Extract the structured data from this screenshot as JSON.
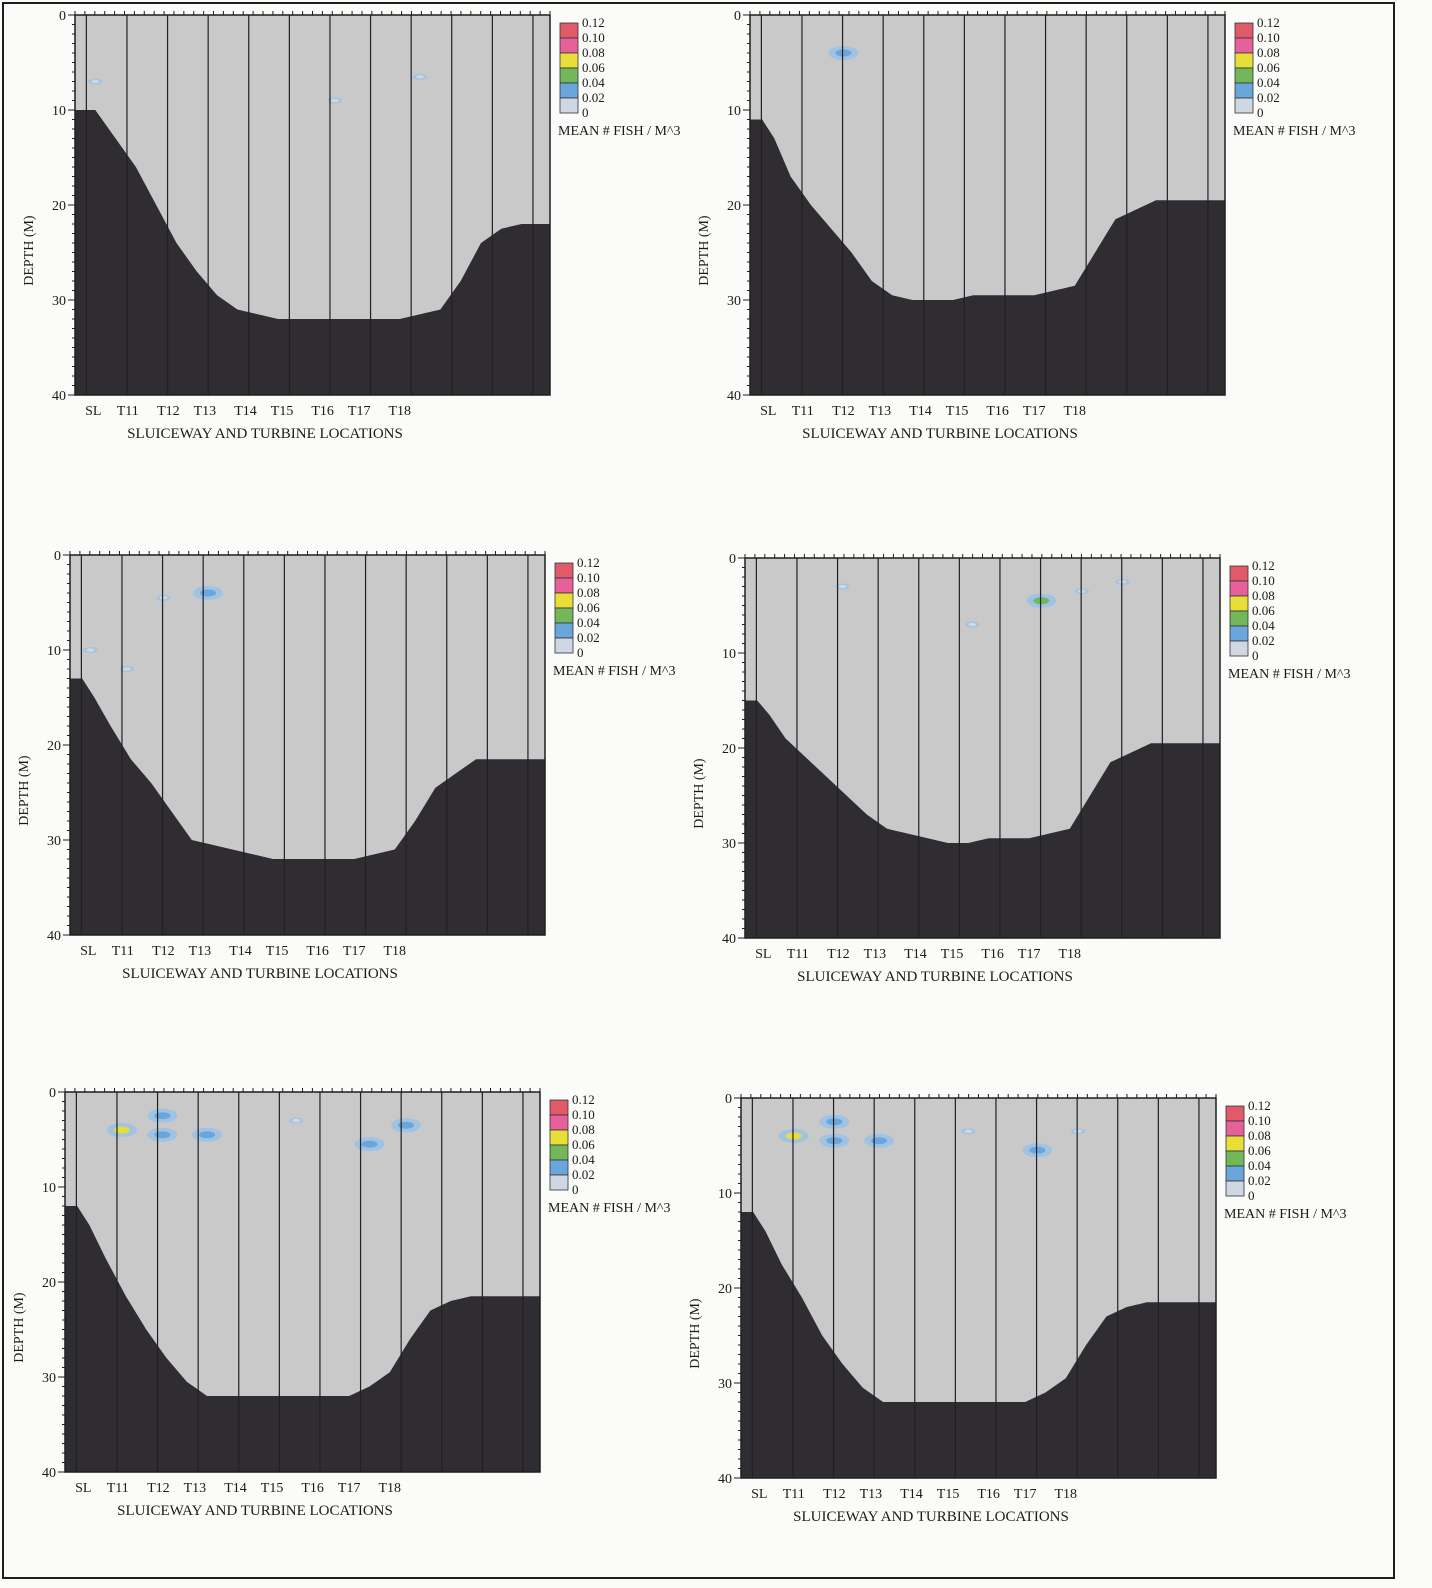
{
  "figure": {
    "colors": {
      "water": "#c9c9c9",
      "bottom": "#2f2d31",
      "grid": "#202020",
      "frame": "#1e1e1e"
    },
    "legend_levels": [
      "0.12",
      "0.10",
      "0.08",
      "0.06",
      "0.04",
      "0.02",
      "0"
    ],
    "legend_colors": [
      "#e05a6a",
      "#e6609a",
      "#e8de3a",
      "#72b85a",
      "#6aa6dc",
      "#cfd7e2",
      "#cccccc"
    ]
  },
  "chart_data": [
    {
      "type": "heatmap",
      "xlabel": "SLUICEWAY AND TURBINE LOCATIONS",
      "ylabel": "DEPTH (M)",
      "categories": [
        "SL",
        "T11",
        "T12",
        "T13",
        "T14",
        "T15",
        "T16",
        "T17",
        "T18"
      ],
      "yticks": [
        "0",
        "10",
        "20",
        "30",
        "40"
      ],
      "ylim": [
        0,
        40
      ],
      "legend_title": "MEAN # FISH / M^3",
      "bottom_profile": {
        "x": [
          0,
          0.5,
          1.0,
          1.5,
          2.0,
          2.5,
          3.0,
          3.5,
          4.0,
          4.5,
          5.0,
          5.5,
          6.0,
          6.5,
          7.0,
          7.5,
          8.0,
          8.5,
          9.0,
          9.5,
          10.0,
          10.5,
          11.0,
          11.5,
          11.7
        ],
        "depth": [
          10,
          10,
          13,
          16,
          20,
          24,
          27,
          29.5,
          31,
          31.5,
          32,
          32,
          32,
          32,
          32,
          32,
          32,
          31.5,
          31,
          28,
          24,
          22.5,
          22,
          22,
          22
        ]
      },
      "fish": [
        {
          "x": 0.5,
          "depth": 7,
          "value": 0.03
        },
        {
          "x": 6.4,
          "depth": 9,
          "value": 0.03
        },
        {
          "x": 8.5,
          "depth": 6.5,
          "value": 0.03
        }
      ]
    },
    {
      "type": "heatmap",
      "xlabel": "SLUICEWAY AND TURBINE LOCATIONS",
      "ylabel": "DEPTH (M)",
      "categories": [
        "SL",
        "T11",
        "T12",
        "T13",
        "T14",
        "T15",
        "T16",
        "T17",
        "T18"
      ],
      "yticks": [
        "0",
        "10",
        "20",
        "30",
        "40"
      ],
      "ylim": [
        0,
        40
      ],
      "legend_title": "MEAN # FISH / M^3",
      "bottom_profile": {
        "x": [
          0,
          0.3,
          0.6,
          1.0,
          1.5,
          2.0,
          2.5,
          3.0,
          3.5,
          4.0,
          4.5,
          5.0,
          5.5,
          6.0,
          6.5,
          7.0,
          7.5,
          8.0,
          8.5,
          9.0,
          9.5,
          10.0,
          10.5,
          11.0,
          11.5,
          11.7
        ],
        "depth": [
          11,
          11,
          13,
          17,
          20,
          22.5,
          25,
          28,
          29.5,
          30,
          30,
          30,
          29.5,
          29.5,
          29.5,
          29.5,
          29,
          28.5,
          25,
          21.5,
          20.5,
          19.5,
          19.5,
          19.5,
          19.5,
          19.5
        ]
      },
      "fish": [
        {
          "x": 2.3,
          "depth": 4,
          "value": 0.04
        }
      ]
    },
    {
      "type": "heatmap",
      "xlabel": "SLUICEWAY AND TURBINE LOCATIONS",
      "ylabel": "DEPTH (M)",
      "categories": [
        "SL",
        "T11",
        "T12",
        "T13",
        "T14",
        "T15",
        "T16",
        "T17",
        "T18"
      ],
      "yticks": [
        "0",
        "10",
        "20",
        "30",
        "40"
      ],
      "ylim": [
        0,
        40
      ],
      "legend_title": "MEAN # FISH / M^3",
      "bottom_profile": {
        "x": [
          0,
          0.3,
          0.6,
          1.0,
          1.5,
          2.0,
          2.5,
          3.0,
          3.5,
          4.0,
          4.5,
          5.0,
          5.5,
          6.0,
          6.5,
          7.0,
          7.5,
          8.0,
          8.5,
          9.0,
          9.5,
          10.0,
          10.5,
          11.0,
          11.5,
          11.7
        ],
        "depth": [
          13,
          13,
          15,
          18,
          21.5,
          24,
          27,
          30,
          30.5,
          31,
          31.5,
          32,
          32,
          32,
          32,
          32,
          31.5,
          31,
          28,
          24.5,
          23,
          21.5,
          21.5,
          21.5,
          21.5,
          21.5
        ]
      },
      "fish": [
        {
          "x": 0.5,
          "depth": 10,
          "value": 0.03
        },
        {
          "x": 1.4,
          "depth": 12,
          "value": 0.02
        },
        {
          "x": 2.3,
          "depth": 4.5,
          "value": 0.03
        },
        {
          "x": 3.4,
          "depth": 4,
          "value": 0.04
        }
      ]
    },
    {
      "type": "heatmap",
      "xlabel": "SLUICEWAY AND TURBINE LOCATIONS",
      "ylabel": "DEPTH (M)",
      "categories": [
        "SL",
        "T11",
        "T12",
        "T13",
        "T14",
        "T15",
        "T16",
        "T17",
        "T18"
      ],
      "yticks": [
        "0",
        "10",
        "20",
        "30",
        "40"
      ],
      "ylim": [
        0,
        40
      ],
      "legend_title": "MEAN # FISH / M^3",
      "bottom_profile": {
        "x": [
          0,
          0.3,
          0.6,
          1.0,
          1.5,
          2.0,
          2.5,
          3.0,
          3.5,
          4.0,
          4.5,
          5.0,
          5.5,
          6.0,
          6.5,
          7.0,
          7.5,
          8.0,
          8.5,
          9.0,
          9.5,
          10.0,
          10.5,
          11.0,
          11.5,
          11.7
        ],
        "depth": [
          15,
          15,
          16.5,
          19,
          21,
          23,
          25,
          27,
          28.5,
          29,
          29.5,
          30,
          30,
          29.5,
          29.5,
          29.5,
          29,
          28.5,
          25,
          21.5,
          20.5,
          19.5,
          19.5,
          19.5,
          19.5,
          19.5
        ]
      },
      "fish": [
        {
          "x": 2.4,
          "depth": 3,
          "value": 0.03
        },
        {
          "x": 5.6,
          "depth": 7,
          "value": 0.03
        },
        {
          "x": 7.3,
          "depth": 4.5,
          "value": 0.07
        },
        {
          "x": 8.3,
          "depth": 3.5,
          "value": 0.03
        },
        {
          "x": 9.3,
          "depth": 2.5,
          "value": 0.03
        }
      ]
    },
    {
      "type": "heatmap",
      "xlabel": "SLUICEWAY AND TURBINE LOCATIONS",
      "ylabel": "DEPTH (M)",
      "categories": [
        "SL",
        "T11",
        "T12",
        "T13",
        "T14",
        "T15",
        "T16",
        "T17",
        "T18"
      ],
      "yticks": [
        "0",
        "10",
        "20",
        "30",
        "40"
      ],
      "ylim": [
        0,
        40
      ],
      "legend_title": "MEAN # FISH / M^3",
      "bottom_profile": {
        "x": [
          0,
          0.3,
          0.6,
          1.0,
          1.5,
          2.0,
          2.5,
          3.0,
          3.5,
          4.0,
          4.5,
          5.0,
          5.5,
          6.0,
          6.5,
          7.0,
          7.5,
          8.0,
          8.5,
          9.0,
          9.5,
          10.0,
          10.5,
          11.0,
          11.5,
          11.7
        ],
        "depth": [
          12,
          12,
          14,
          17.5,
          21.5,
          25,
          28,
          30.5,
          32,
          32,
          32,
          32,
          32,
          32,
          32,
          32,
          31,
          29.5,
          26,
          23,
          22,
          21.5,
          21.5,
          21.5,
          21.5,
          21.5
        ]
      },
      "fish": [
        {
          "x": 1.4,
          "depth": 4,
          "value": 0.09
        },
        {
          "x": 2.4,
          "depth": 2.5,
          "value": 0.04
        },
        {
          "x": 2.4,
          "depth": 4.5,
          "value": 0.04
        },
        {
          "x": 3.5,
          "depth": 4.5,
          "value": 0.04
        },
        {
          "x": 5.7,
          "depth": 3,
          "value": 0.02
        },
        {
          "x": 7.5,
          "depth": 5.5,
          "value": 0.05
        },
        {
          "x": 8.4,
          "depth": 3.5,
          "value": 0.04
        }
      ]
    },
    {
      "type": "heatmap",
      "xlabel": "SLUICEWAY AND TURBINE LOCATIONS",
      "ylabel": "DEPTH (M)",
      "categories": [
        "SL",
        "T11",
        "T12",
        "T13",
        "T14",
        "T15",
        "T16",
        "T17",
        "T18"
      ],
      "yticks": [
        "0",
        "10",
        "20",
        "30",
        "40"
      ],
      "ylim": [
        0,
        40
      ],
      "legend_title": "MEAN # FISH / M^3",
      "bottom_profile": {
        "x": [
          0,
          0.3,
          0.6,
          1.0,
          1.5,
          2.0,
          2.5,
          3.0,
          3.5,
          4.0,
          4.5,
          5.0,
          5.5,
          6.0,
          6.5,
          7.0,
          7.5,
          8.0,
          8.5,
          9.0,
          9.5,
          10.0,
          10.5,
          11.0,
          11.5,
          11.7
        ],
        "depth": [
          12,
          12,
          14,
          17.5,
          21,
          25,
          28,
          30.5,
          32,
          32,
          32,
          32,
          32,
          32,
          32,
          32,
          31,
          29.5,
          26,
          23,
          22,
          21.5,
          21.5,
          21.5,
          21.5,
          21.5
        ]
      },
      "fish": [
        {
          "x": 1.3,
          "depth": 4,
          "value": 0.08
        },
        {
          "x": 2.3,
          "depth": 2.5,
          "value": 0.04
        },
        {
          "x": 2.3,
          "depth": 4.5,
          "value": 0.04
        },
        {
          "x": 3.4,
          "depth": 4.5,
          "value": 0.04
        },
        {
          "x": 5.6,
          "depth": 3.5,
          "value": 0.02
        },
        {
          "x": 7.3,
          "depth": 5.5,
          "value": 0.05
        },
        {
          "x": 8.3,
          "depth": 3.5,
          "value": 0.03
        }
      ]
    }
  ]
}
